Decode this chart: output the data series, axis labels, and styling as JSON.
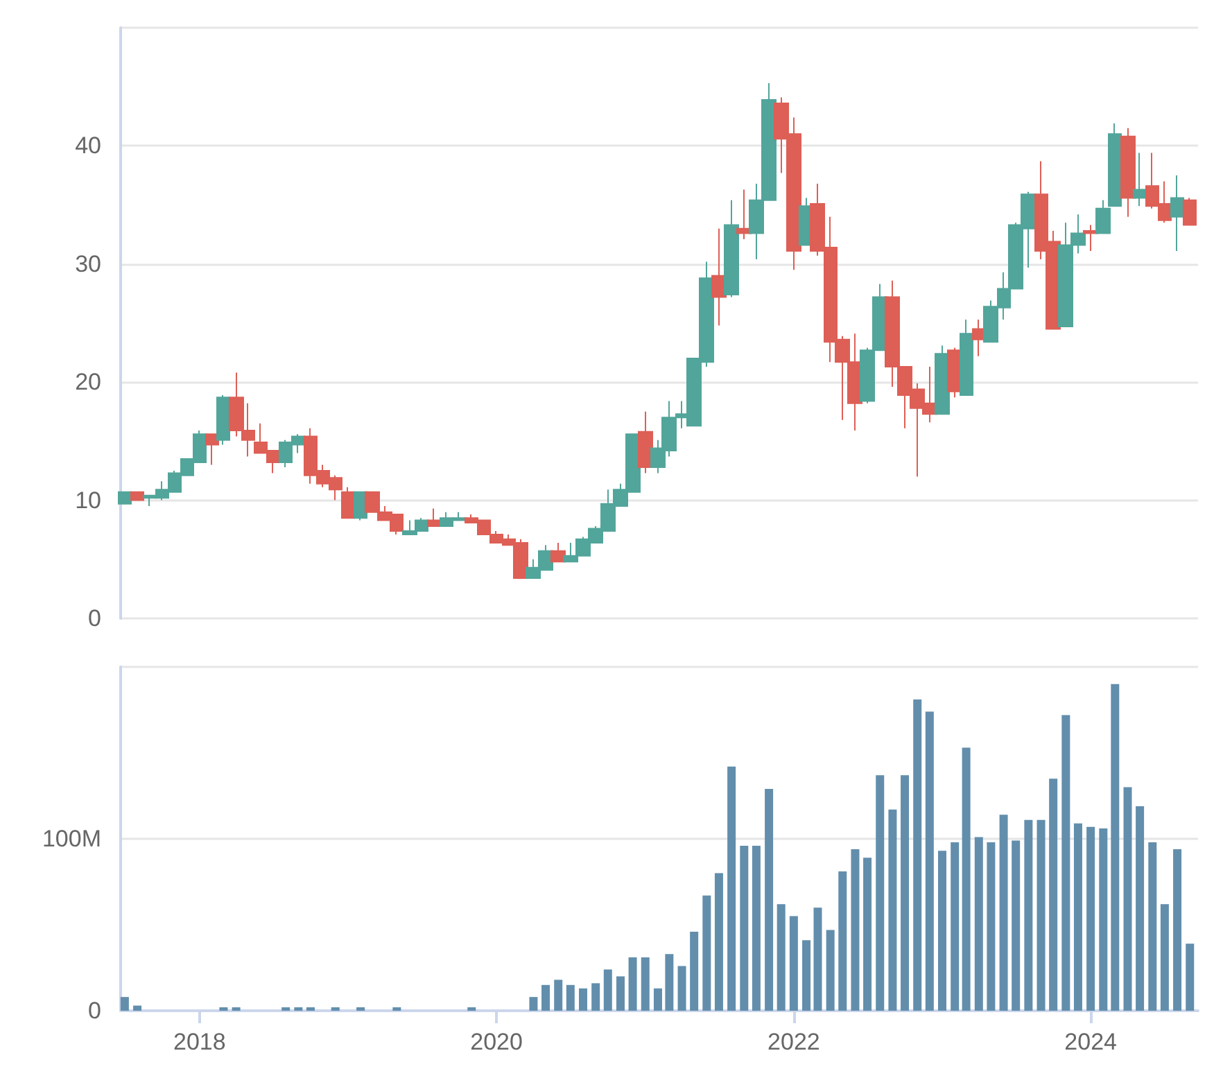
{
  "chart_data": [
    {
      "type": "candlestick",
      "x": [
        "2017-07",
        "2017-08",
        "2017-09",
        "2017-10",
        "2017-11",
        "2017-12",
        "2018-01",
        "2018-02",
        "2018-03",
        "2018-04",
        "2018-05",
        "2018-06",
        "2018-07",
        "2018-08",
        "2018-09",
        "2018-10",
        "2018-11",
        "2018-12",
        "2019-01",
        "2019-02",
        "2019-03",
        "2019-04",
        "2019-05",
        "2019-06",
        "2019-07",
        "2019-08",
        "2019-09",
        "2019-10",
        "2019-11",
        "2019-12",
        "2020-01",
        "2020-02",
        "2020-03",
        "2020-04",
        "2020-05",
        "2020-06",
        "2020-07",
        "2020-08",
        "2020-09",
        "2020-10",
        "2020-11",
        "2020-12",
        "2021-01",
        "2021-02",
        "2021-03",
        "2021-04",
        "2021-05",
        "2021-06",
        "2021-07",
        "2021-08",
        "2021-09",
        "2021-10",
        "2021-11",
        "2021-12",
        "2022-01",
        "2022-02",
        "2022-03",
        "2022-04",
        "2022-05",
        "2022-06",
        "2022-07",
        "2022-08",
        "2022-09",
        "2022-10",
        "2022-11",
        "2022-12",
        "2023-01",
        "2023-02",
        "2023-03",
        "2023-04",
        "2023-05",
        "2023-06",
        "2023-07",
        "2023-08",
        "2023-09",
        "2023-10",
        "2023-11",
        "2023-12",
        "2024-01",
        "2024-02",
        "2024-03",
        "2024-04",
        "2024-05",
        "2024-06",
        "2024-07",
        "2024-08",
        "2024-09"
      ],
      "ohlc": [
        [
          9.7,
          10.7,
          9.7,
          10.7
        ],
        [
          10.7,
          10.7,
          10.0,
          10.0
        ],
        [
          10.2,
          10.4,
          9.5,
          10.4
        ],
        [
          10.2,
          11.6,
          10.0,
          10.9
        ],
        [
          10.7,
          12.5,
          10.7,
          12.3
        ],
        [
          12.1,
          13.5,
          12.1,
          13.5
        ],
        [
          13.2,
          15.9,
          13.2,
          15.6
        ],
        [
          15.6,
          15.6,
          13.0,
          14.7
        ],
        [
          15.1,
          18.9,
          14.7,
          18.7
        ],
        [
          18.7,
          20.8,
          15.4,
          15.9
        ],
        [
          15.9,
          18.2,
          13.7,
          15.1
        ],
        [
          14.9,
          16.5,
          14.0,
          14.0
        ],
        [
          14.2,
          14.2,
          12.3,
          13.2
        ],
        [
          13.2,
          15.1,
          12.8,
          14.9
        ],
        [
          14.7,
          15.6,
          14.0,
          15.4
        ],
        [
          15.4,
          16.1,
          11.4,
          12.1
        ],
        [
          12.5,
          13.0,
          11.1,
          11.4
        ],
        [
          11.9,
          12.1,
          10.0,
          10.9
        ],
        [
          10.7,
          11.1,
          8.5,
          8.5
        ],
        [
          8.5,
          10.7,
          8.3,
          10.7
        ],
        [
          10.7,
          10.7,
          9.0,
          9.0
        ],
        [
          9.0,
          9.5,
          8.3,
          8.3
        ],
        [
          8.8,
          8.8,
          7.1,
          7.4
        ],
        [
          7.1,
          8.3,
          7.1,
          7.4
        ],
        [
          7.4,
          8.5,
          7.4,
          8.3
        ],
        [
          8.3,
          9.3,
          7.8,
          7.8
        ],
        [
          7.8,
          9.0,
          7.8,
          8.5
        ],
        [
          8.3,
          9.0,
          8.3,
          8.5
        ],
        [
          8.5,
          8.8,
          8.1,
          8.1
        ],
        [
          8.3,
          8.3,
          7.1,
          7.1
        ],
        [
          7.1,
          7.4,
          6.4,
          6.4
        ],
        [
          6.7,
          7.1,
          6.2,
          6.2
        ],
        [
          6.4,
          6.7,
          3.4,
          3.4
        ],
        [
          3.4,
          5.0,
          3.4,
          4.3
        ],
        [
          4.1,
          6.2,
          4.1,
          5.7
        ],
        [
          5.7,
          6.4,
          4.8,
          4.8
        ],
        [
          4.8,
          6.4,
          4.8,
          5.3
        ],
        [
          5.3,
          6.9,
          5.3,
          6.7
        ],
        [
          6.4,
          7.8,
          6.4,
          7.6
        ],
        [
          7.4,
          10.9,
          7.4,
          9.7
        ],
        [
          9.5,
          11.4,
          9.5,
          10.9
        ],
        [
          10.7,
          15.6,
          10.7,
          15.6
        ],
        [
          15.8,
          17.5,
          12.3,
          12.8
        ],
        [
          12.8,
          15.1,
          12.3,
          14.4
        ],
        [
          14.2,
          18.4,
          13.7,
          17.0
        ],
        [
          17.0,
          18.4,
          16.1,
          17.3
        ],
        [
          16.3,
          22.0,
          16.3,
          22.0
        ],
        [
          21.7,
          30.2,
          21.3,
          28.8
        ],
        [
          29.0,
          33.0,
          24.8,
          27.2
        ],
        [
          27.4,
          35.4,
          27.2,
          33.3
        ],
        [
          33.0,
          36.3,
          32.1,
          32.6
        ],
        [
          32.6,
          36.8,
          30.4,
          35.4
        ],
        [
          35.4,
          45.3,
          35.4,
          43.9
        ],
        [
          43.6,
          44.1,
          37.7,
          40.6
        ],
        [
          41.0,
          42.4,
          29.5,
          31.1
        ],
        [
          31.6,
          35.6,
          31.6,
          34.9
        ],
        [
          35.1,
          36.8,
          30.7,
          31.1
        ],
        [
          31.4,
          34.0,
          21.7,
          23.4
        ],
        [
          23.6,
          23.9,
          16.8,
          21.7
        ],
        [
          21.7,
          24.1,
          15.9,
          18.2
        ],
        [
          18.4,
          22.9,
          18.2,
          22.7
        ],
        [
          22.7,
          28.3,
          22.7,
          27.2
        ],
        [
          27.2,
          28.6,
          19.6,
          21.3
        ],
        [
          21.3,
          21.3,
          16.1,
          18.9
        ],
        [
          19.4,
          19.9,
          12.0,
          17.8
        ],
        [
          18.2,
          21.3,
          16.6,
          17.3
        ],
        [
          17.3,
          23.1,
          17.3,
          22.4
        ],
        [
          22.7,
          22.9,
          18.7,
          19.2
        ],
        [
          18.9,
          25.3,
          18.9,
          24.1
        ],
        [
          24.5,
          25.3,
          22.2,
          23.6
        ],
        [
          23.4,
          26.9,
          23.4,
          26.4
        ],
        [
          26.3,
          29.3,
          25.3,
          27.9
        ],
        [
          27.9,
          33.5,
          27.9,
          33.3
        ],
        [
          33.0,
          36.1,
          29.7,
          35.9
        ],
        [
          35.9,
          38.7,
          30.4,
          31.1
        ],
        [
          31.9,
          32.8,
          24.5,
          24.5
        ],
        [
          24.7,
          33.5,
          24.7,
          31.6
        ],
        [
          31.6,
          34.2,
          30.9,
          32.6
        ],
        [
          32.8,
          33.3,
          31.1,
          32.6
        ],
        [
          32.6,
          35.4,
          32.6,
          34.7
        ],
        [
          34.9,
          41.9,
          34.9,
          41.0
        ],
        [
          40.8,
          41.5,
          34.0,
          35.6
        ],
        [
          35.6,
          39.4,
          34.9,
          36.3
        ],
        [
          36.6,
          39.4,
          34.7,
          34.9
        ],
        [
          35.1,
          37.0,
          33.5,
          33.7
        ],
        [
          34.0,
          37.5,
          31.1,
          35.6
        ],
        [
          35.4,
          35.6,
          33.3,
          33.3
        ]
      ],
      "colors": [
        "#52a59a",
        "#dd5f56",
        "#52a59a",
        "#52a59a",
        "#52a59a",
        "#52a59a",
        "#52a59a",
        "#dd5f56",
        "#52a59a",
        "#dd5f56",
        "#dd5f56",
        "#dd5f56",
        "#dd5f56",
        "#52a59a",
        "#52a59a",
        "#dd5f56",
        "#dd5f56",
        "#dd5f56",
        "#dd5f56",
        "#52a59a",
        "#dd5f56",
        "#dd5f56",
        "#dd5f56",
        "#52a59a",
        "#52a59a",
        "#dd5f56",
        "#52a59a",
        "#52a59a",
        "#dd5f56",
        "#dd5f56",
        "#dd5f56",
        "#dd5f56",
        "#dd5f56",
        "#52a59a",
        "#52a59a",
        "#dd5f56",
        "#52a59a",
        "#52a59a",
        "#52a59a",
        "#52a59a",
        "#52a59a",
        "#52a59a",
        "#dd5f56",
        "#52a59a",
        "#52a59a",
        "#52a59a",
        "#52a59a",
        "#52a59a",
        "#dd5f56",
        "#52a59a",
        "#dd5f56",
        "#52a59a",
        "#52a59a",
        "#dd5f56",
        "#dd5f56",
        "#52a59a",
        "#dd5f56",
        "#dd5f56",
        "#dd5f56",
        "#dd5f56",
        "#52a59a",
        "#52a59a",
        "#dd5f56",
        "#dd5f56",
        "#dd5f56",
        "#dd5f56",
        "#52a59a",
        "#dd5f56",
        "#52a59a",
        "#dd5f56",
        "#52a59a",
        "#52a59a",
        "#52a59a",
        "#52a59a",
        "#dd5f56",
        "#dd5f56",
        "#52a59a",
        "#52a59a",
        "#dd5f56",
        "#52a59a",
        "#52a59a",
        "#dd5f56",
        "#52a59a",
        "#dd5f56",
        "#dd5f56",
        "#52a59a",
        "#dd5f56"
      ],
      "xlim": [
        "2017-06-21",
        "2024-09-21"
      ],
      "ylim": [
        0,
        50
      ],
      "yticks": [
        0,
        10,
        20,
        30,
        40,
        {
          "value": 50,
          "label": null
        }
      ],
      "grid": "y",
      "tick_labels": "y"
    },
    {
      "type": "bar",
      "x": [
        "2017-07",
        "2017-08",
        "2017-09",
        "2017-10",
        "2017-11",
        "2017-12",
        "2018-01",
        "2018-02",
        "2018-03",
        "2018-04",
        "2018-05",
        "2018-06",
        "2018-07",
        "2018-08",
        "2018-09",
        "2018-10",
        "2018-11",
        "2018-12",
        "2019-01",
        "2019-02",
        "2019-03",
        "2019-04",
        "2019-05",
        "2019-06",
        "2019-07",
        "2019-08",
        "2019-09",
        "2019-10",
        "2019-11",
        "2019-12",
        "2020-01",
        "2020-02",
        "2020-03",
        "2020-04",
        "2020-05",
        "2020-06",
        "2020-07",
        "2020-08",
        "2020-09",
        "2020-10",
        "2020-11",
        "2020-12",
        "2021-01",
        "2021-02",
        "2021-03",
        "2021-04",
        "2021-05",
        "2021-06",
        "2021-07",
        "2021-08",
        "2021-09",
        "2021-10",
        "2021-11",
        "2021-12",
        "2022-01",
        "2022-02",
        "2022-03",
        "2022-04",
        "2022-05",
        "2022-06",
        "2022-07",
        "2022-08",
        "2022-09",
        "2022-10",
        "2022-11",
        "2022-12",
        "2023-01",
        "2023-02",
        "2023-03",
        "2023-04",
        "2023-05",
        "2023-06",
        "2023-07",
        "2023-08",
        "2023-09",
        "2023-10",
        "2023-11",
        "2023-12",
        "2024-01",
        "2024-02",
        "2024-03",
        "2024-04",
        "2024-05",
        "2024-06",
        "2024-07",
        "2024-08",
        "2024-09"
      ],
      "series": [
        {
          "color": "#628eac",
          "values": [
            8,
            3,
            0,
            0,
            0,
            0,
            0,
            0,
            2,
            2,
            0,
            0,
            0,
            2,
            2,
            2,
            0,
            2,
            0,
            2,
            0,
            0,
            2,
            0,
            0,
            0,
            0,
            0,
            2,
            0,
            0,
            0,
            0,
            8,
            15,
            18,
            15,
            13,
            16,
            24,
            20,
            31,
            31,
            13,
            33,
            26,
            46,
            67,
            80,
            142,
            96,
            96,
            129,
            62,
            55,
            41,
            60,
            47,
            81,
            94,
            89,
            137,
            117,
            137,
            181,
            174,
            93,
            98,
            153,
            101,
            98,
            114,
            99,
            111,
            111,
            135,
            172,
            109,
            107,
            106,
            190,
            130,
            119,
            98,
            62,
            94,
            39
          ]
        }
      ],
      "xlim": [
        "2017-06-21",
        "2024-09-21"
      ],
      "xticks": [
        {
          "value": "2018",
          "label": "2018"
        },
        {
          "value": "2020",
          "label": "2020"
        },
        {
          "value": "2022",
          "label": "2022"
        },
        {
          "value": "2024",
          "label": "2024"
        }
      ],
      "ylim": [
        0,
        200
      ],
      "yticks": [
        0,
        {
          "value": 100,
          "label": "100M"
        },
        {
          "value": 200,
          "label": null
        }
      ],
      "grid": "y"
    }
  ]
}
